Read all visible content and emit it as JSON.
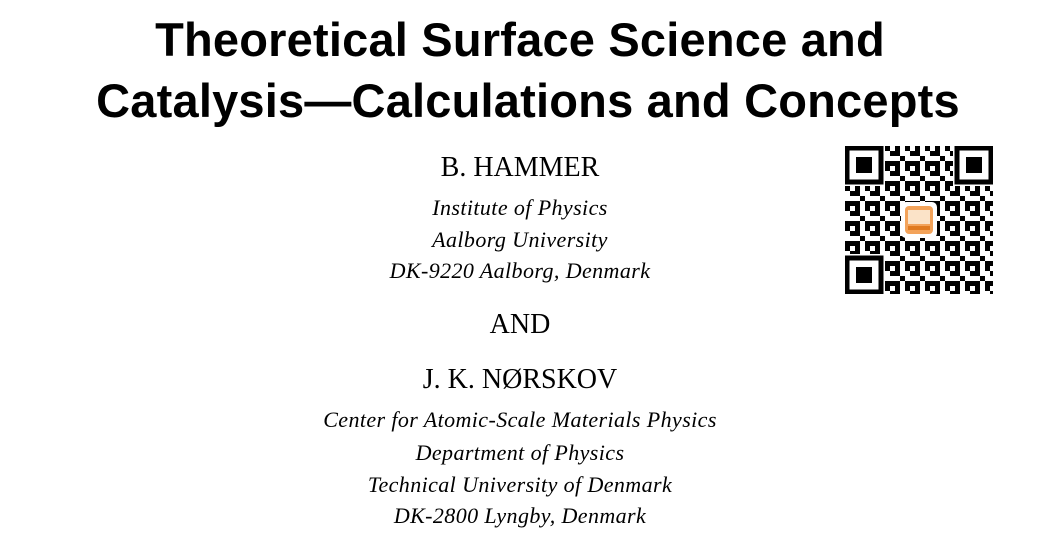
{
  "title": {
    "lines": [
      "Theoretical Surface Science and",
      "Catalysis—Calculations and Concepts"
    ]
  },
  "authors": [
    {
      "name": "B. HAMMER",
      "affiliation": [
        "Institute of Physics",
        "Aalborg University",
        "DK-9220 Aalborg, Denmark"
      ]
    },
    {
      "name": "J. K. NØRSKOV",
      "affiliation": [
        "Center for Atomic-Scale Materials Physics",
        "Department of Physics",
        "Technical University of Denmark",
        "DK-2800 Lyngby, Denmark"
      ]
    }
  ],
  "conjunction": "AND"
}
